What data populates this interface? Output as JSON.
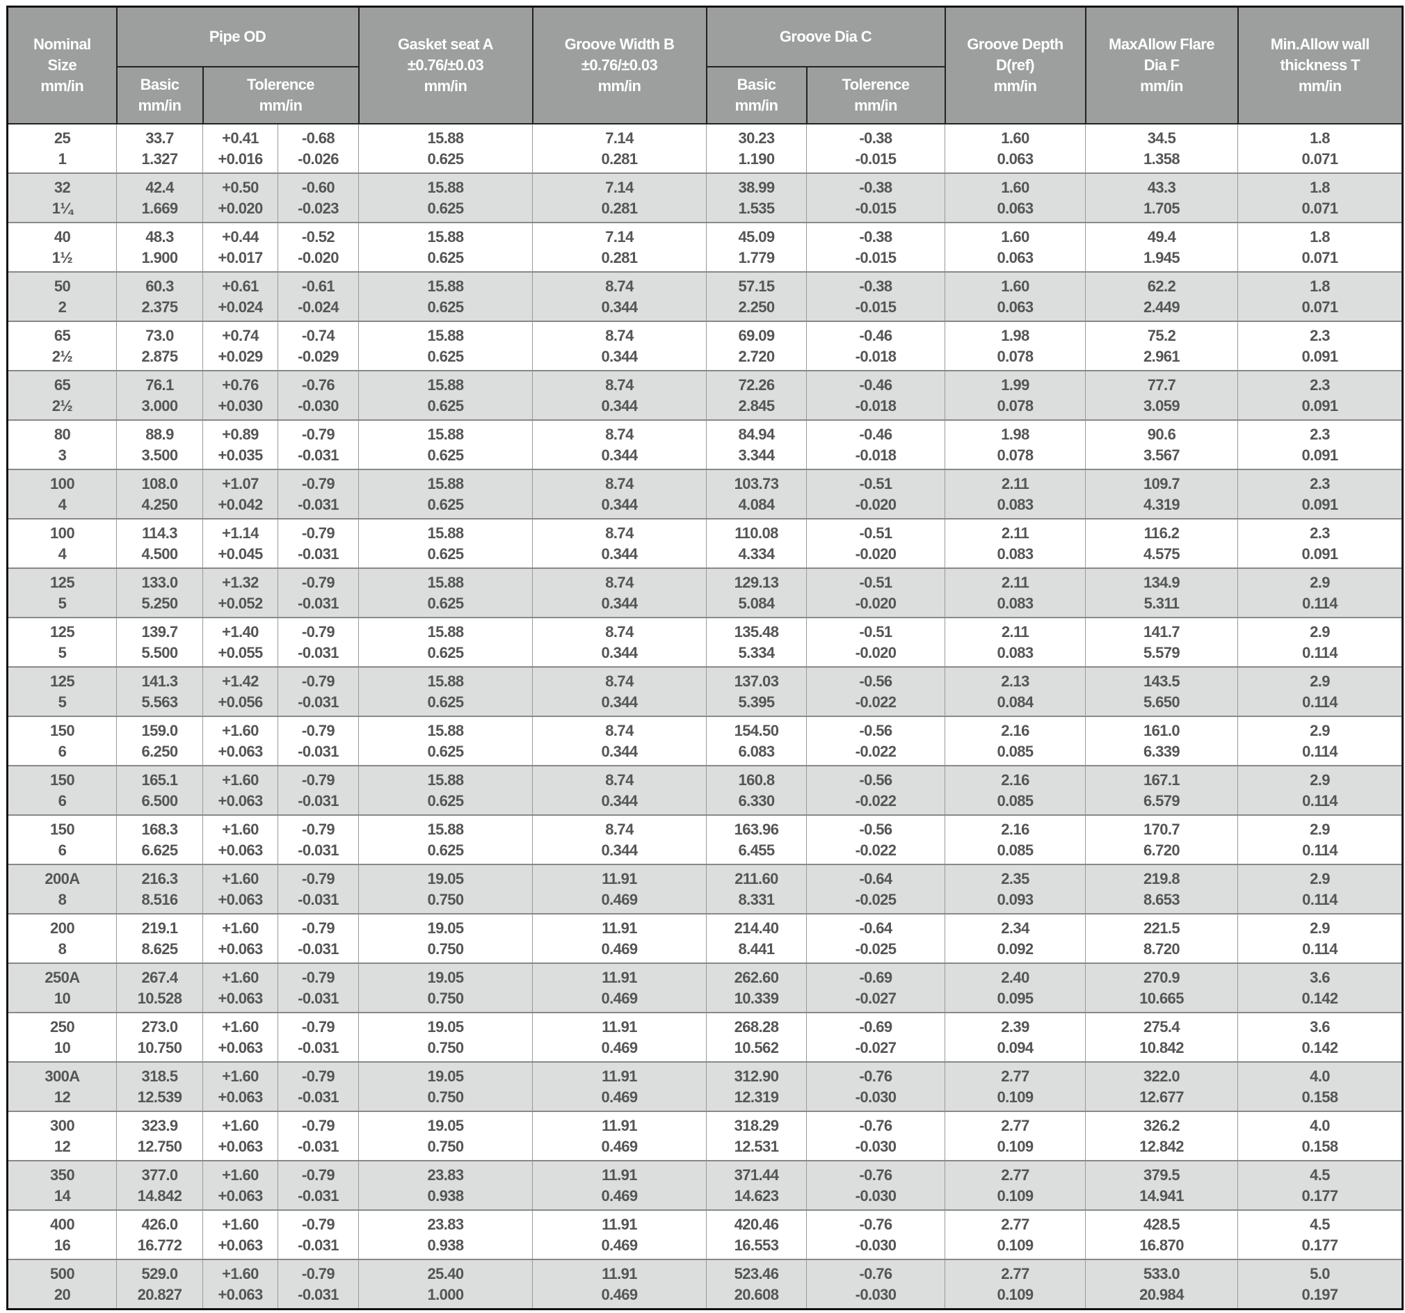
{
  "headers": {
    "nominal": [
      "Nominal",
      "Size",
      "mm/in"
    ],
    "pipe_od": "Pipe OD",
    "pipe_od_basic": [
      "Basic",
      "mm/in"
    ],
    "pipe_od_tolerence": [
      "Tolerence",
      "mm/in"
    ],
    "gasket_seat": [
      "Gasket seat A",
      "±0.76/±0.03",
      "mm/in"
    ],
    "groove_width": [
      "Groove Width B",
      "±0.76/±0.03",
      "mm/in"
    ],
    "groove_dia": "Groove Dia C",
    "groove_dia_basic": [
      "Basic",
      "mm/in"
    ],
    "groove_dia_tolerence": [
      "Tolerence",
      "mm/in"
    ],
    "groove_depth": [
      "Groove Depth",
      "D(ref)",
      "mm/in"
    ],
    "flare_dia": [
      "MaxAllow Flare",
      "Dia F",
      "mm/in"
    ],
    "wall_thickness": [
      "Min.Allow wall",
      "thickness T",
      "mm/in"
    ]
  },
  "rows": [
    [
      [
        "25",
        "1"
      ],
      [
        "33.7",
        "1.327"
      ],
      [
        "+0.41",
        "+0.016"
      ],
      [
        "-0.68",
        "-0.026"
      ],
      [
        "15.88",
        "0.625"
      ],
      [
        "7.14",
        "0.281"
      ],
      [
        "30.23",
        "1.190"
      ],
      [
        "-0.38",
        "-0.015"
      ],
      [
        "1.60",
        "0.063"
      ],
      [
        "34.5",
        "1.358"
      ],
      [
        "1.8",
        "0.071"
      ]
    ],
    [
      [
        "32",
        "1¼"
      ],
      [
        "42.4",
        "1.669"
      ],
      [
        "+0.50",
        "+0.020"
      ],
      [
        "-0.60",
        "-0.023"
      ],
      [
        "15.88",
        "0.625"
      ],
      [
        "7.14",
        "0.281"
      ],
      [
        "38.99",
        "1.535"
      ],
      [
        "-0.38",
        "-0.015"
      ],
      [
        "1.60",
        "0.063"
      ],
      [
        "43.3",
        "1.705"
      ],
      [
        "1.8",
        "0.071"
      ]
    ],
    [
      [
        "40",
        "1½"
      ],
      [
        "48.3",
        "1.900"
      ],
      [
        "+0.44",
        "+0.017"
      ],
      [
        "-0.52",
        "-0.020"
      ],
      [
        "15.88",
        "0.625"
      ],
      [
        "7.14",
        "0.281"
      ],
      [
        "45.09",
        "1.779"
      ],
      [
        "-0.38",
        "-0.015"
      ],
      [
        "1.60",
        "0.063"
      ],
      [
        "49.4",
        "1.945"
      ],
      [
        "1.8",
        "0.071"
      ]
    ],
    [
      [
        "50",
        "2"
      ],
      [
        "60.3",
        "2.375"
      ],
      [
        "+0.61",
        "+0.024"
      ],
      [
        "-0.61",
        "-0.024"
      ],
      [
        "15.88",
        "0.625"
      ],
      [
        "8.74",
        "0.344"
      ],
      [
        "57.15",
        "2.250"
      ],
      [
        "-0.38",
        "-0.015"
      ],
      [
        "1.60",
        "0.063"
      ],
      [
        "62.2",
        "2.449"
      ],
      [
        "1.8",
        "0.071"
      ]
    ],
    [
      [
        "65",
        "2½"
      ],
      [
        "73.0",
        "2.875"
      ],
      [
        "+0.74",
        "+0.029"
      ],
      [
        "-0.74",
        "-0.029"
      ],
      [
        "15.88",
        "0.625"
      ],
      [
        "8.74",
        "0.344"
      ],
      [
        "69.09",
        "2.720"
      ],
      [
        "-0.46",
        "-0.018"
      ],
      [
        "1.98",
        "0.078"
      ],
      [
        "75.2",
        "2.961"
      ],
      [
        "2.3",
        "0.091"
      ]
    ],
    [
      [
        "65",
        "2½"
      ],
      [
        "76.1",
        "3.000"
      ],
      [
        "+0.76",
        "+0.030"
      ],
      [
        "-0.76",
        "-0.030"
      ],
      [
        "15.88",
        "0.625"
      ],
      [
        "8.74",
        "0.344"
      ],
      [
        "72.26",
        "2.845"
      ],
      [
        "-0.46",
        "-0.018"
      ],
      [
        "1.99",
        "0.078"
      ],
      [
        "77.7",
        "3.059"
      ],
      [
        "2.3",
        "0.091"
      ]
    ],
    [
      [
        "80",
        "3"
      ],
      [
        "88.9",
        "3.500"
      ],
      [
        "+0.89",
        "+0.035"
      ],
      [
        "-0.79",
        "-0.031"
      ],
      [
        "15.88",
        "0.625"
      ],
      [
        "8.74",
        "0.344"
      ],
      [
        "84.94",
        "3.344"
      ],
      [
        "-0.46",
        "-0.018"
      ],
      [
        "1.98",
        "0.078"
      ],
      [
        "90.6",
        "3.567"
      ],
      [
        "2.3",
        "0.091"
      ]
    ],
    [
      [
        "100",
        "4"
      ],
      [
        "108.0",
        "4.250"
      ],
      [
        "+1.07",
        "+0.042"
      ],
      [
        "-0.79",
        "-0.031"
      ],
      [
        "15.88",
        "0.625"
      ],
      [
        "8.74",
        "0.344"
      ],
      [
        "103.73",
        "4.084"
      ],
      [
        "-0.51",
        "-0.020"
      ],
      [
        "2.11",
        "0.083"
      ],
      [
        "109.7",
        "4.319"
      ],
      [
        "2.3",
        "0.091"
      ]
    ],
    [
      [
        "100",
        "4"
      ],
      [
        "114.3",
        "4.500"
      ],
      [
        "+1.14",
        "+0.045"
      ],
      [
        "-0.79",
        "-0.031"
      ],
      [
        "15.88",
        "0.625"
      ],
      [
        "8.74",
        "0.344"
      ],
      [
        "110.08",
        "4.334"
      ],
      [
        "-0.51",
        "-0.020"
      ],
      [
        "2.11",
        "0.083"
      ],
      [
        "116.2",
        "4.575"
      ],
      [
        "2.3",
        "0.091"
      ]
    ],
    [
      [
        "125",
        "5"
      ],
      [
        "133.0",
        "5.250"
      ],
      [
        "+1.32",
        "+0.052"
      ],
      [
        "-0.79",
        "-0.031"
      ],
      [
        "15.88",
        "0.625"
      ],
      [
        "8.74",
        "0.344"
      ],
      [
        "129.13",
        "5.084"
      ],
      [
        "-0.51",
        "-0.020"
      ],
      [
        "2.11",
        "0.083"
      ],
      [
        "134.9",
        "5.311"
      ],
      [
        "2.9",
        "0.114"
      ]
    ],
    [
      [
        "125",
        "5"
      ],
      [
        "139.7",
        "5.500"
      ],
      [
        "+1.40",
        "+0.055"
      ],
      [
        "-0.79",
        "-0.031"
      ],
      [
        "15.88",
        "0.625"
      ],
      [
        "8.74",
        "0.344"
      ],
      [
        "135.48",
        "5.334"
      ],
      [
        "-0.51",
        "-0.020"
      ],
      [
        "2.11",
        "0.083"
      ],
      [
        "141.7",
        "5.579"
      ],
      [
        "2.9",
        "0.114"
      ]
    ],
    [
      [
        "125",
        "5"
      ],
      [
        "141.3",
        "5.563"
      ],
      [
        "+1.42",
        "+0.056"
      ],
      [
        "-0.79",
        "-0.031"
      ],
      [
        "15.88",
        "0.625"
      ],
      [
        "8.74",
        "0.344"
      ],
      [
        "137.03",
        "5.395"
      ],
      [
        "-0.56",
        "-0.022"
      ],
      [
        "2.13",
        "0.084"
      ],
      [
        "143.5",
        "5.650"
      ],
      [
        "2.9",
        "0.114"
      ]
    ],
    [
      [
        "150",
        "6"
      ],
      [
        "159.0",
        "6.250"
      ],
      [
        "+1.60",
        "+0.063"
      ],
      [
        "-0.79",
        "-0.031"
      ],
      [
        "15.88",
        "0.625"
      ],
      [
        "8.74",
        "0.344"
      ],
      [
        "154.50",
        "6.083"
      ],
      [
        "-0.56",
        "-0.022"
      ],
      [
        "2.16",
        "0.085"
      ],
      [
        "161.0",
        "6.339"
      ],
      [
        "2.9",
        "0.114"
      ]
    ],
    [
      [
        "150",
        "6"
      ],
      [
        "165.1",
        "6.500"
      ],
      [
        "+1.60",
        "+0.063"
      ],
      [
        "-0.79",
        "-0.031"
      ],
      [
        "15.88",
        "0.625"
      ],
      [
        "8.74",
        "0.344"
      ],
      [
        "160.8",
        "6.330"
      ],
      [
        "-0.56",
        "-0.022"
      ],
      [
        "2.16",
        "0.085"
      ],
      [
        "167.1",
        "6.579"
      ],
      [
        "2.9",
        "0.114"
      ]
    ],
    [
      [
        "150",
        "6"
      ],
      [
        "168.3",
        "6.625"
      ],
      [
        "+1.60",
        "+0.063"
      ],
      [
        "-0.79",
        "-0.031"
      ],
      [
        "15.88",
        "0.625"
      ],
      [
        "8.74",
        "0.344"
      ],
      [
        "163.96",
        "6.455"
      ],
      [
        "-0.56",
        "-0.022"
      ],
      [
        "2.16",
        "0.085"
      ],
      [
        "170.7",
        "6.720"
      ],
      [
        "2.9",
        "0.114"
      ]
    ],
    [
      [
        "200A",
        "8"
      ],
      [
        "216.3",
        "8.516"
      ],
      [
        "+1.60",
        "+0.063"
      ],
      [
        "-0.79",
        "-0.031"
      ],
      [
        "19.05",
        "0.750"
      ],
      [
        "11.91",
        "0.469"
      ],
      [
        "211.60",
        "8.331"
      ],
      [
        "-0.64",
        "-0.025"
      ],
      [
        "2.35",
        "0.093"
      ],
      [
        "219.8",
        "8.653"
      ],
      [
        "2.9",
        "0.114"
      ]
    ],
    [
      [
        "200",
        "8"
      ],
      [
        "219.1",
        "8.625"
      ],
      [
        "+1.60",
        "+0.063"
      ],
      [
        "-0.79",
        "-0.031"
      ],
      [
        "19.05",
        "0.750"
      ],
      [
        "11.91",
        "0.469"
      ],
      [
        "214.40",
        "8.441"
      ],
      [
        "-0.64",
        "-0.025"
      ],
      [
        "2.34",
        "0.092"
      ],
      [
        "221.5",
        "8.720"
      ],
      [
        "2.9",
        "0.114"
      ]
    ],
    [
      [
        "250A",
        "10"
      ],
      [
        "267.4",
        "10.528"
      ],
      [
        "+1.60",
        "+0.063"
      ],
      [
        "-0.79",
        "-0.031"
      ],
      [
        "19.05",
        "0.750"
      ],
      [
        "11.91",
        "0.469"
      ],
      [
        "262.60",
        "10.339"
      ],
      [
        "-0.69",
        "-0.027"
      ],
      [
        "2.40",
        "0.095"
      ],
      [
        "270.9",
        "10.665"
      ],
      [
        "3.6",
        "0.142"
      ]
    ],
    [
      [
        "250",
        "10"
      ],
      [
        "273.0",
        "10.750"
      ],
      [
        "+1.60",
        "+0.063"
      ],
      [
        "-0.79",
        "-0.031"
      ],
      [
        "19.05",
        "0.750"
      ],
      [
        "11.91",
        "0.469"
      ],
      [
        "268.28",
        "10.562"
      ],
      [
        "-0.69",
        "-0.027"
      ],
      [
        "2.39",
        "0.094"
      ],
      [
        "275.4",
        "10.842"
      ],
      [
        "3.6",
        "0.142"
      ]
    ],
    [
      [
        "300A",
        "12"
      ],
      [
        "318.5",
        "12.539"
      ],
      [
        "+1.60",
        "+0.063"
      ],
      [
        "-0.79",
        "-0.031"
      ],
      [
        "19.05",
        "0.750"
      ],
      [
        "11.91",
        "0.469"
      ],
      [
        "312.90",
        "12.319"
      ],
      [
        "-0.76",
        "-0.030"
      ],
      [
        "2.77",
        "0.109"
      ],
      [
        "322.0",
        "12.677"
      ],
      [
        "4.0",
        "0.158"
      ]
    ],
    [
      [
        "300",
        "12"
      ],
      [
        "323.9",
        "12.750"
      ],
      [
        "+1.60",
        "+0.063"
      ],
      [
        "-0.79",
        "-0.031"
      ],
      [
        "19.05",
        "0.750"
      ],
      [
        "11.91",
        "0.469"
      ],
      [
        "318.29",
        "12.531"
      ],
      [
        "-0.76",
        "-0.030"
      ],
      [
        "2.77",
        "0.109"
      ],
      [
        "326.2",
        "12.842"
      ],
      [
        "4.0",
        "0.158"
      ]
    ],
    [
      [
        "350",
        "14"
      ],
      [
        "377.0",
        "14.842"
      ],
      [
        "+1.60",
        "+0.063"
      ],
      [
        "-0.79",
        "-0.031"
      ],
      [
        "23.83",
        "0.938"
      ],
      [
        "11.91",
        "0.469"
      ],
      [
        "371.44",
        "14.623"
      ],
      [
        "-0.76",
        "-0.030"
      ],
      [
        "2.77",
        "0.109"
      ],
      [
        "379.5",
        "14.941"
      ],
      [
        "4.5",
        "0.177"
      ]
    ],
    [
      [
        "400",
        "16"
      ],
      [
        "426.0",
        "16.772"
      ],
      [
        "+1.60",
        "+0.063"
      ],
      [
        "-0.79",
        "-0.031"
      ],
      [
        "23.83",
        "0.938"
      ],
      [
        "11.91",
        "0.469"
      ],
      [
        "420.46",
        "16.553"
      ],
      [
        "-0.76",
        "-0.030"
      ],
      [
        "2.77",
        "0.109"
      ],
      [
        "428.5",
        "16.870"
      ],
      [
        "4.5",
        "0.177"
      ]
    ],
    [
      [
        "500",
        "20"
      ],
      [
        "529.0",
        "20.827"
      ],
      [
        "+1.60",
        "+0.063"
      ],
      [
        "-0.79",
        "-0.031"
      ],
      [
        "25.40",
        "1.000"
      ],
      [
        "11.91",
        "0.469"
      ],
      [
        "523.46",
        "20.608"
      ],
      [
        "-0.76",
        "-0.030"
      ],
      [
        "2.77",
        "0.109"
      ],
      [
        "533.0",
        "20.984"
      ],
      [
        "5.0",
        "0.197"
      ]
    ]
  ]
}
